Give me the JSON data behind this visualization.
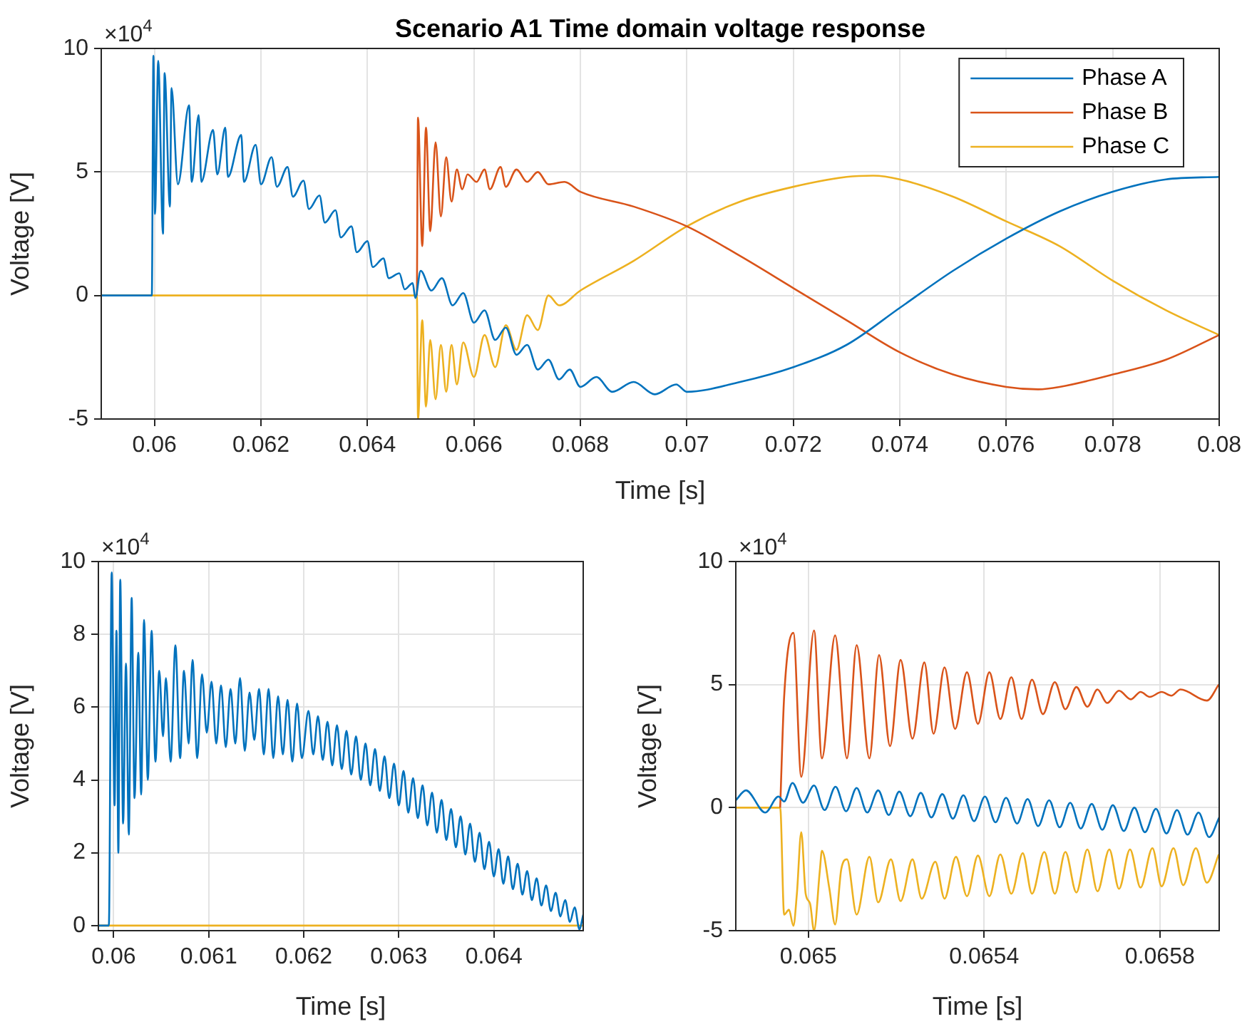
{
  "chart_data": [
    {
      "type": "line",
      "title": "Scenario A1 Time domain voltage response",
      "xlabel": "Time [s]",
      "ylabel": "Voltage [V]",
      "annotations": [
        "×10$^{4}$"
      ],
      "xlim": [
        0.059,
        0.08
      ],
      "xticks": [
        0.06,
        0.062,
        0.064,
        0.066,
        0.068,
        0.07,
        0.072,
        0.074,
        0.076,
        0.078,
        0.08
      ],
      "ylim": [
        -5,
        10
      ],
      "yticks": [
        -5,
        0,
        5,
        10
      ],
      "grid": true,
      "legend": "top right",
      "series": [
        {
          "name": "Phase A",
          "color": "#0072bd",
          "x": [
            0.059,
            0.05995,
            0.05998,
            0.06001,
            0.06007,
            0.06016,
            0.06019,
            0.06029,
            0.06032,
            0.06044,
            0.06065,
            0.0607,
            0.06083,
            0.06088,
            0.0611,
            0.06118,
            0.06133,
            0.06138,
            0.06163,
            0.06168,
            0.0619,
            0.062,
            0.0622,
            0.0623,
            0.0625,
            0.0626,
            0.0628,
            0.0629,
            0.0631,
            0.0632,
            0.0634,
            0.0635,
            0.0637,
            0.0638,
            0.064,
            0.0641,
            0.0643,
            0.0644,
            0.0646,
            0.0647,
            0.06485,
            0.0649,
            0.065,
            0.0652,
            0.0654,
            0.0656,
            0.0658,
            0.066,
            0.0662,
            0.0664,
            0.0666,
            0.0668,
            0.067,
            0.0672,
            0.0674,
            0.0676,
            0.0678,
            0.068,
            0.0683,
            0.0686,
            0.069,
            0.0694,
            0.0698,
            0.07,
            0.071,
            0.072,
            0.073,
            0.074,
            0.075,
            0.076,
            0.077,
            0.078,
            0.079,
            0.08
          ],
          "values": [
            0,
            0,
            9.7,
            3.3,
            9.5,
            2.5,
            9.0,
            3.6,
            8.4,
            4.5,
            7.7,
            4.6,
            7.3,
            4.6,
            6.7,
            4.9,
            6.8,
            4.8,
            6.5,
            4.6,
            6.1,
            4.5,
            5.6,
            4.4,
            5.2,
            4.0,
            4.65,
            3.5,
            4.05,
            2.95,
            3.45,
            2.35,
            2.8,
            1.75,
            2.2,
            1.15,
            1.5,
            0.7,
            0.9,
            0.25,
            0.5,
            -0.1,
            1.0,
            0.2,
            0.7,
            -0.4,
            0.1,
            -1.1,
            -0.6,
            -1.8,
            -1.3,
            -2.4,
            -2.0,
            -3.0,
            -2.6,
            -3.4,
            -3.0,
            -3.7,
            -3.3,
            -3.9,
            -3.5,
            -4.0,
            -3.6,
            -3.9,
            -3.5,
            -2.9,
            -2.0,
            -0.5,
            1.0,
            2.3,
            3.4,
            4.2,
            4.7,
            4.8
          ]
        },
        {
          "name": "Phase B",
          "color": "#d95319",
          "x": [
            0.06493,
            0.06495,
            0.06503,
            0.0651,
            0.06518,
            0.06528,
            0.06538,
            0.06548,
            0.06558,
            0.06568,
            0.06578,
            0.06588,
            0.06605,
            0.0662,
            0.0663,
            0.0665,
            0.0666,
            0.0668,
            0.067,
            0.0672,
            0.0674,
            0.0677,
            0.068,
            0.069,
            0.07,
            0.071,
            0.072,
            0.073,
            0.074,
            0.075,
            0.076,
            0.0766,
            0.077,
            0.078,
            0.079,
            0.08
          ],
          "values": [
            0,
            7.2,
            2.0,
            6.8,
            2.6,
            6.2,
            3.2,
            5.6,
            3.8,
            5.1,
            4.3,
            4.9,
            4.6,
            5.1,
            4.3,
            5.2,
            4.4,
            5.1,
            4.6,
            5.0,
            4.5,
            4.6,
            4.2,
            3.6,
            2.8,
            1.6,
            0.3,
            -1.0,
            -2.3,
            -3.2,
            -3.7,
            -3.8,
            -3.7,
            -3.2,
            -2.6,
            -1.6
          ]
        },
        {
          "name": "Phase C",
          "color": "#edb120",
          "x": [
            0.059,
            0.06493,
            0.06495,
            0.06503,
            0.0651,
            0.06518,
            0.06528,
            0.06538,
            0.06548,
            0.06558,
            0.06568,
            0.0658,
            0.066,
            0.0662,
            0.0664,
            0.0666,
            0.0668,
            0.067,
            0.0672,
            0.0674,
            0.0676,
            0.068,
            0.069,
            0.07,
            0.071,
            0.072,
            0.073,
            0.0735,
            0.074,
            0.075,
            0.076,
            0.077,
            0.078,
            0.079,
            0.08
          ],
          "values": [
            0,
            0,
            -5.0,
            -1.0,
            -4.5,
            -1.8,
            -4.2,
            -2.0,
            -3.9,
            -2.0,
            -3.6,
            -1.9,
            -3.3,
            -1.6,
            -2.9,
            -1.2,
            -2.2,
            -0.8,
            -1.4,
            0,
            -0.4,
            0.2,
            1.4,
            2.8,
            3.8,
            4.4,
            4.8,
            4.85,
            4.7,
            4.0,
            3.0,
            2.0,
            0.6,
            -0.6,
            -1.6
          ]
        }
      ]
    },
    {
      "type": "line",
      "xlabel": "Time [s]",
      "ylabel": "Voltage [V]",
      "annotations": [
        "×10$^{4}$"
      ],
      "xlim": [
        0.05984,
        0.06494
      ],
      "xticks": [
        0.06,
        0.061,
        0.062,
        0.063,
        0.064
      ],
      "ylim": [
        -0.14,
        10
      ],
      "yticks": [
        0,
        2,
        4,
        6,
        8,
        10
      ],
      "grid": true,
      "series": [
        {
          "color": "#0072bd",
          "x": [
            0.05984,
            0.05995,
            0.05998,
            0.06001,
            0.06003,
            0.06005,
            0.06007,
            0.0601,
            0.06013,
            0.06016,
            0.06019,
            0.06022,
            0.06026,
            0.06029,
            0.06032,
            0.06036,
            0.0604,
            0.06044,
            0.06048,
            0.06052,
            0.06055,
            0.0606,
            0.06065,
            0.0607,
            0.06074,
            0.06079,
            0.06083,
            0.06088,
            0.06093,
            0.06098,
            0.06103,
            0.06108,
            0.06113,
            0.06118,
            0.06123,
            0.06128,
            0.06133,
            0.06138,
            0.06143,
            0.06148,
            0.06153,
            0.06158,
            0.06163,
            0.06168,
            0.06173,
            0.06178,
            0.06183,
            0.06188,
            0.06193,
            0.06198,
            0.06205,
            0.0621,
            0.06215,
            0.0622,
            0.06225,
            0.0623,
            0.06235,
            0.0624,
            0.06245,
            0.0625,
            0.06255,
            0.0626,
            0.06265,
            0.0627,
            0.06275,
            0.0628,
            0.06285,
            0.0629,
            0.06295,
            0.063,
            0.06305,
            0.0631,
            0.06315,
            0.0632,
            0.06325,
            0.0633,
            0.06335,
            0.0634,
            0.06345,
            0.0635,
            0.06355,
            0.0636,
            0.06365,
            0.0637,
            0.06375,
            0.0638,
            0.06385,
            0.0639,
            0.06395,
            0.064,
            0.06405,
            0.0641,
            0.06415,
            0.0642,
            0.06425,
            0.0643,
            0.06435,
            0.0644,
            0.06445,
            0.0645,
            0.06455,
            0.0646,
            0.06465,
            0.0647,
            0.06475,
            0.0648,
            0.06485,
            0.0649,
            0.06494
          ],
          "values": [
            0,
            0,
            9.7,
            3.3,
            8.1,
            2.0,
            9.5,
            2.8,
            7.2,
            2.5,
            9.0,
            3.5,
            7.5,
            3.6,
            8.4,
            4.0,
            8.1,
            4.5,
            7.0,
            5.2,
            6.8,
            4.5,
            7.7,
            4.6,
            7.0,
            5.0,
            7.3,
            4.6,
            6.9,
            5.3,
            6.7,
            5.0,
            6.6,
            4.9,
            6.5,
            5.0,
            6.8,
            4.8,
            6.4,
            5.1,
            6.5,
            4.7,
            6.5,
            4.6,
            6.3,
            4.7,
            6.2,
            4.5,
            6.1,
            4.6,
            5.9,
            4.7,
            5.75,
            4.55,
            5.6,
            4.4,
            5.5,
            4.3,
            5.35,
            4.15,
            5.2,
            4.0,
            5.0,
            3.85,
            4.85,
            3.7,
            4.65,
            3.5,
            4.45,
            3.3,
            4.25,
            3.1,
            4.05,
            2.95,
            3.85,
            2.75,
            3.65,
            2.55,
            3.45,
            2.35,
            3.2,
            2.15,
            3.0,
            1.95,
            2.8,
            1.75,
            2.55,
            1.55,
            2.3,
            1.35,
            2.1,
            1.15,
            1.9,
            1.0,
            1.7,
            0.85,
            1.5,
            0.7,
            1.3,
            0.55,
            1.1,
            0.4,
            0.9,
            0.25,
            0.7,
            0.1,
            0.5,
            -0.1,
            0.3
          ]
        },
        {
          "color": "#edb120",
          "x": [
            0.05984,
            0.06494
          ],
          "values": [
            0,
            0
          ]
        }
      ]
    },
    {
      "type": "line",
      "xlabel": "Time [s]",
      "ylabel": "Voltage [V]",
      "annotations": [
        "×10$^{4}$"
      ],
      "xlim": [
        0.064835,
        0.065935
      ],
      "xticks": [
        0.065,
        0.0654,
        0.0658
      ],
      "ylim": [
        -5,
        10
      ],
      "yticks": [
        -5,
        0,
        5,
        10
      ],
      "grid": true,
      "series": [
        {
          "color": "#0072bd",
          "x": [
            0.064835,
            0.064858,
            0.064902,
            0.064932,
            0.064945,
            0.064964,
            0.064988,
            0.065013,
            0.065037,
            0.065062,
            0.065086,
            0.06511,
            0.065134,
            0.065159,
            0.065183,
            0.065207,
            0.065232,
            0.065256,
            0.06528,
            0.065305,
            0.065329,
            0.065353,
            0.065377,
            0.065402,
            0.065426,
            0.06545,
            0.065475,
            0.065499,
            0.065523,
            0.065548,
            0.065572,
            0.065596,
            0.06562,
            0.065645,
            0.065669,
            0.065693,
            0.065718,
            0.065742,
            0.065766,
            0.065791,
            0.065815,
            0.065839,
            0.065863,
            0.065888,
            0.065912,
            0.065935
          ],
          "values": [
            0.3,
            0.7,
            -0.2,
            0.45,
            0.25,
            1.0,
            0.2,
            0.9,
            -0.1,
            0.85,
            -0.15,
            0.8,
            -0.2,
            0.7,
            -0.3,
            0.65,
            -0.35,
            0.6,
            -0.4,
            0.55,
            -0.45,
            0.5,
            -0.55,
            0.45,
            -0.6,
            0.4,
            -0.65,
            0.35,
            -0.75,
            0.3,
            -0.8,
            0.2,
            -0.85,
            0.15,
            -0.9,
            0.1,
            -0.95,
            0,
            -1.0,
            -0.05,
            -1.05,
            -0.1,
            -1.1,
            -0.2,
            -1.2,
            -0.4
          ]
        },
        {
          "color": "#d95319",
          "x": [
            0.064936,
            0.064945,
            0.064966,
            0.064984,
            0.065013,
            0.065031,
            0.065061,
            0.065088,
            0.06511,
            0.065139,
            0.065161,
            0.065186,
            0.06521,
            0.065237,
            0.065264,
            0.065285,
            0.06531,
            0.065334,
            0.065361,
            0.065386,
            0.065412,
            0.065437,
            0.065462,
            0.065485,
            0.065509,
            0.065534,
            0.065561,
            0.065585,
            0.06561,
            0.065635,
            0.065658,
            0.06568,
            0.065707,
            0.065734,
            0.065756,
            0.065777,
            0.065804,
            0.065826,
            0.065847,
            0.065907,
            0.065934
          ],
          "values": [
            0,
            4.5,
            7.1,
            1.25,
            7.2,
            2.0,
            7.0,
            2.0,
            6.6,
            2.0,
            6.2,
            2.5,
            6.0,
            2.8,
            5.9,
            3.0,
            5.7,
            3.2,
            5.5,
            3.4,
            5.5,
            3.6,
            5.3,
            3.6,
            5.2,
            3.8,
            5.1,
            4.0,
            4.9,
            4.1,
            4.8,
            4.25,
            4.75,
            4.4,
            4.7,
            4.5,
            4.7,
            4.55,
            4.8,
            4.35,
            5.0
          ]
        },
        {
          "color": "#edb120",
          "x": [
            0.064835,
            0.064936,
            0.064945,
            0.064956,
            0.064966,
            0.064974,
            0.064984,
            0.064994,
            0.065004,
            0.065013,
            0.065026,
            0.065031,
            0.065048,
            0.065061,
            0.065075,
            0.065088,
            0.06511,
            0.065139,
            0.065159,
            0.065188,
            0.06521,
            0.065237,
            0.065258,
            0.065289,
            0.06531,
            0.065336,
            0.065361,
            0.065386,
            0.065412,
            0.065437,
            0.065462,
            0.065488,
            0.065509,
            0.065537,
            0.065561,
            0.065585,
            0.06561,
            0.065635,
            0.065658,
            0.065685,
            0.065707,
            0.065732,
            0.065756,
            0.065783,
            0.065804,
            0.065831,
            0.065853,
            0.065882,
            0.065907,
            0.065934
          ],
          "values": [
            0,
            0,
            -4.35,
            -4.15,
            -4.8,
            -3.5,
            -1.0,
            -3.5,
            -3.9,
            -5.0,
            -2.6,
            -1.75,
            -3.3,
            -4.75,
            -2.5,
            -2.1,
            -4.35,
            -2.0,
            -3.85,
            -2.1,
            -3.8,
            -2.1,
            -3.7,
            -2.2,
            -3.7,
            -2.0,
            -3.6,
            -1.95,
            -3.6,
            -1.9,
            -3.5,
            -1.85,
            -3.5,
            -1.8,
            -3.5,
            -1.8,
            -3.45,
            -1.7,
            -3.4,
            -1.7,
            -3.3,
            -1.7,
            -3.25,
            -1.65,
            -3.2,
            -1.65,
            -3.15,
            -1.65,
            -3.05,
            -1.9
          ]
        }
      ]
    }
  ]
}
